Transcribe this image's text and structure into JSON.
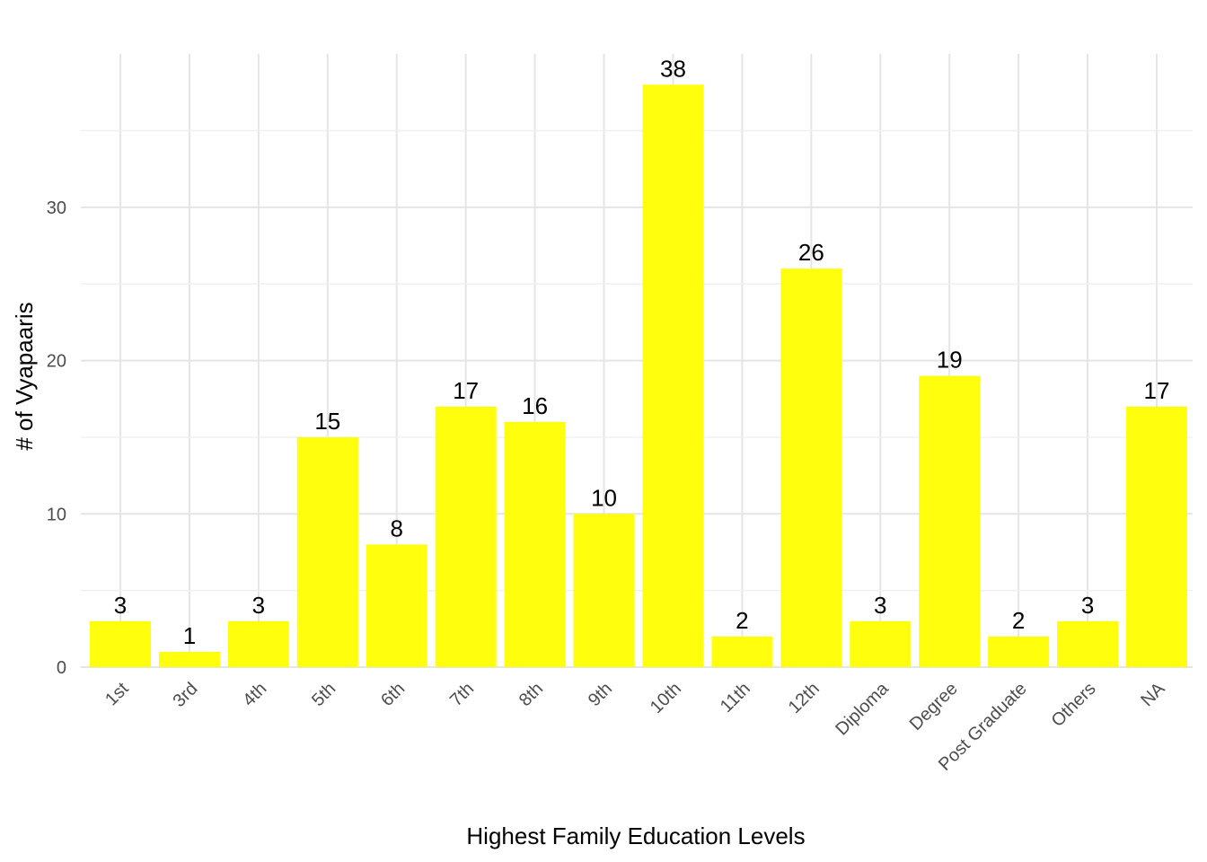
{
  "chart_data": {
    "type": "bar",
    "categories": [
      "1st",
      "3rd",
      "4th",
      "5th",
      "6th",
      "7th",
      "8th",
      "9th",
      "10th",
      "11th",
      "12th",
      "Diploma",
      "Degree",
      "Post Graduate",
      "Others",
      "NA"
    ],
    "values": [
      3,
      1,
      3,
      15,
      8,
      17,
      16,
      10,
      38,
      2,
      26,
      3,
      19,
      2,
      3,
      17
    ],
    "title": "",
    "xlabel": "Highest Family Education Levels",
    "ylabel": "# of Vyapaaris",
    "ylim": [
      0,
      39
    ],
    "yticks": [
      0,
      10,
      20,
      30
    ],
    "bar_color": "#ffff0d",
    "grid": true,
    "data_labels": true
  }
}
